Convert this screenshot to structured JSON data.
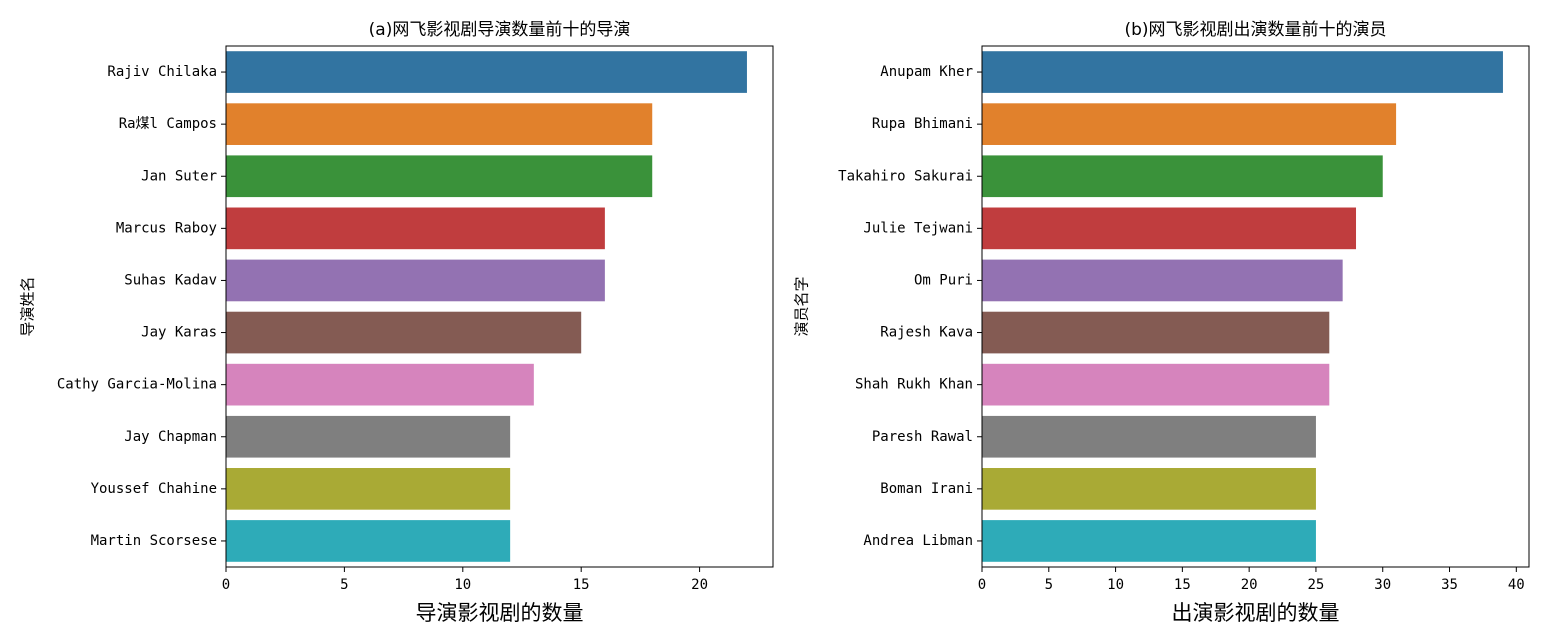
{
  "chart_data": [
    {
      "type": "bar",
      "orientation": "horizontal",
      "title": "(a)网飞影视剧导演数量前十的导演",
      "xlabel": "导演影视剧的数量",
      "ylabel": "导演姓名",
      "categories": [
        "Rajiv Chilaka",
        "Ra煤l Campos",
        "Jan Suter",
        "Marcus Raboy",
        "Suhas Kadav",
        "Jay Karas",
        "Cathy Garcia-Molina",
        "Jay Chapman",
        "Youssef Chahine",
        "Martin Scorsese"
      ],
      "values": [
        22,
        18,
        18,
        16,
        16,
        15,
        13,
        12,
        12,
        12
      ],
      "colors": [
        "#3274a1",
        "#e1812c",
        "#3a923a",
        "#c03d3e",
        "#9372b2",
        "#845b53",
        "#d684bd",
        "#7f7f7f",
        "#a9aa35",
        "#2eabb8"
      ],
      "xlim": [
        0,
        23.1
      ],
      "xticks": [
        0,
        5,
        10,
        15,
        20
      ]
    },
    {
      "type": "bar",
      "orientation": "horizontal",
      "title": "(b)网飞影视剧出演数量前十的演员",
      "xlabel": "出演影视剧的数量",
      "ylabel": "演员名字",
      "categories": [
        "Anupam Kher",
        "Rupa Bhimani",
        "Takahiro Sakurai",
        "Julie Tejwani",
        "Om Puri",
        "Rajesh Kava",
        "Shah Rukh Khan",
        "Paresh Rawal",
        "Boman Irani",
        "Andrea Libman"
      ],
      "values": [
        39,
        31,
        30,
        28,
        27,
        26,
        26,
        25,
        25,
        25
      ],
      "colors": [
        "#3274a1",
        "#e1812c",
        "#3a923a",
        "#c03d3e",
        "#9372b2",
        "#845b53",
        "#d684bd",
        "#7f7f7f",
        "#a9aa35",
        "#2eabb8"
      ],
      "xlim": [
        0,
        40.95
      ],
      "xticks": [
        0,
        5,
        10,
        15,
        20,
        25,
        30,
        35,
        40
      ]
    }
  ]
}
